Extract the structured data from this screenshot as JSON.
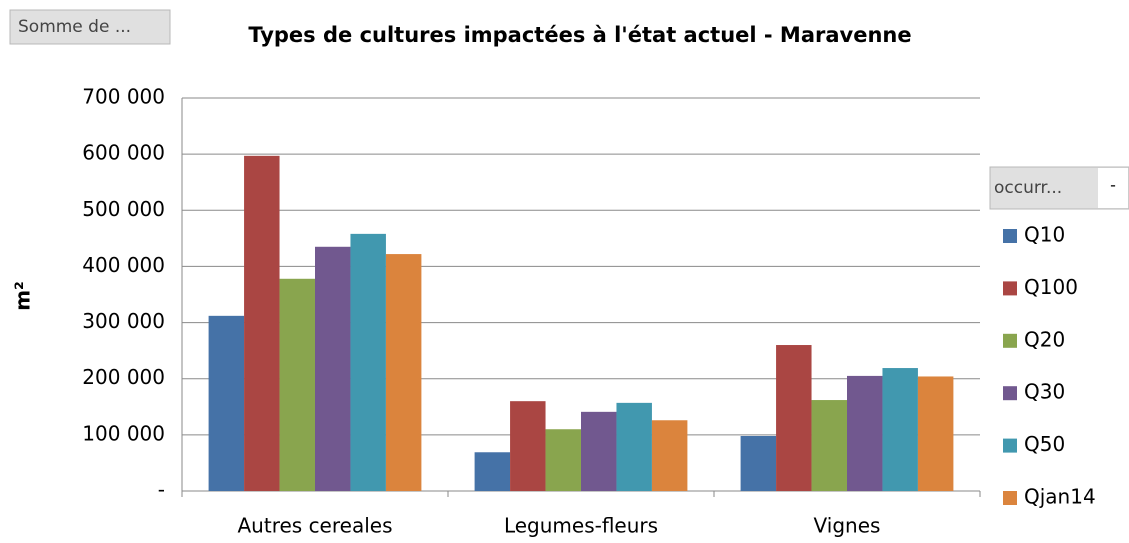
{
  "chart_data": {
    "type": "bar",
    "title": "Types de cultures impactées à l'état actuel - Maravenne",
    "value_field_button": "Somme de ...",
    "legend_field_button": "occurr...",
    "y_label": "m²",
    "categories": [
      "Autres cereales",
      "Legumes-fleurs",
      "Vignes"
    ],
    "series": [
      {
        "name": "Q10",
        "color": "#4572a7",
        "values": [
          312000,
          69000,
          98000
        ]
      },
      {
        "name": "Q100",
        "color": "#aa4643",
        "values": [
          597000,
          160000,
          260000
        ]
      },
      {
        "name": "Q20",
        "color": "#89a54e",
        "values": [
          378000,
          110000,
          162000
        ]
      },
      {
        "name": "Q30",
        "color": "#71588f",
        "values": [
          435000,
          141000,
          205000
        ]
      },
      {
        "name": "Q50",
        "color": "#4198af",
        "values": [
          458000,
          157000,
          219000
        ]
      },
      {
        "name": "Qjan14",
        "color": "#db843d",
        "values": [
          422000,
          126000,
          204000
        ]
      }
    ],
    "ylim": [
      0,
      700000
    ],
    "yticks": [
      {
        "value": 0,
        "label": "-"
      },
      {
        "value": 100000,
        "label": "100 000"
      },
      {
        "value": 200000,
        "label": "200 000"
      },
      {
        "value": 300000,
        "label": "300 000"
      },
      {
        "value": 400000,
        "label": "400 000"
      },
      {
        "value": 500000,
        "label": "500 000"
      },
      {
        "value": 600000,
        "label": "600 000"
      },
      {
        "value": 700000,
        "label": "700 000"
      }
    ],
    "grid": true,
    "legend": "right"
  }
}
